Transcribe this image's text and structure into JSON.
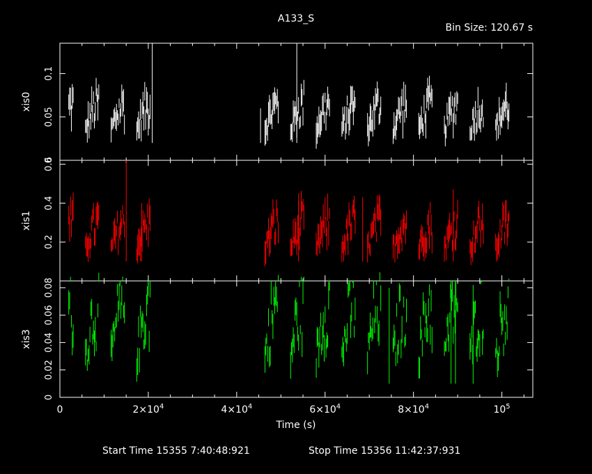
{
  "header": {
    "title": "A133_S",
    "bin_size": "Bin Size: 120.67 s"
  },
  "footer": {
    "start_time": "Start Time 15355  7:40:48:921",
    "stop_time": "Stop Time 15356 11:42:37:931"
  },
  "chart_data": {
    "type": "line",
    "title": "A133_S",
    "xlabel": "Time (s)",
    "xlim": [
      0,
      107000
    ],
    "x_ticks": [
      {
        "value": 0,
        "base": "0",
        "exp": ""
      },
      {
        "value": 20000,
        "base": "2×10",
        "exp": "4"
      },
      {
        "value": 40000,
        "base": "4×10",
        "exp": "4"
      },
      {
        "value": 60000,
        "base": "6×10",
        "exp": "4"
      },
      {
        "value": 80000,
        "base": "8×10",
        "exp": "4"
      },
      {
        "value": 100000,
        "base": "10",
        "exp": "5"
      }
    ],
    "segments": [
      [
        2000,
        21000
      ],
      [
        44000,
        104000
      ]
    ],
    "panels": [
      {
        "name": "xis0",
        "ylabel": "xis0",
        "color": "#ffffff",
        "ylim": [
          0,
          0.135
        ],
        "yticks": [
          0,
          0.05,
          0.1
        ],
        "ytick_labels": [
          "0",
          "0.05",
          "0.1"
        ],
        "baseline": 0.02,
        "amplitude": 0.045,
        "spikes": [
          [
            20900,
            0.135
          ],
          [
            53600,
            0.135
          ],
          [
            45400,
            0.06
          ]
        ]
      },
      {
        "name": "xis1",
        "ylabel": "xis1",
        "color": "#ff0000",
        "ylim": [
          0,
          0.62
        ],
        "yticks": [
          0.2,
          0.4,
          0.6
        ],
        "ytick_labels": [
          "0.2",
          "0.4",
          "0.6"
        ],
        "baseline": 0.1,
        "amplitude": 0.2,
        "spikes": [
          [
            15000,
            0.62
          ],
          [
            18500,
            0.4
          ],
          [
            54000,
            0.45
          ],
          [
            68500,
            0.43
          ],
          [
            89000,
            0.47
          ]
        ]
      },
      {
        "name": "xis3",
        "ylabel": "xis3",
        "color": "#00ff00",
        "ylim": [
          0,
          0.085
        ],
        "yticks": [
          0,
          0.02,
          0.04,
          0.06,
          0.08
        ],
        "ytick_labels": [
          "0",
          "0.02",
          "0.04",
          "0.06",
          "0.08"
        ],
        "baseline": 0.01,
        "amplitude": 0.06,
        "spikes": [
          [
            88500,
            0.085
          ],
          [
            89500,
            0.085
          ],
          [
            74500,
            0.08
          ],
          [
            93500,
            0.082
          ]
        ]
      }
    ]
  }
}
